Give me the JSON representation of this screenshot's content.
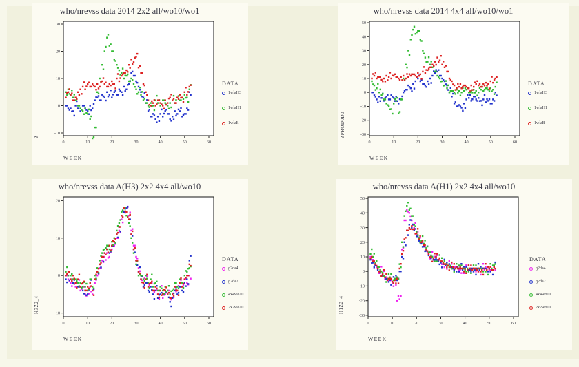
{
  "page": {
    "outer_bg": "#f7f7ea",
    "inner_bg": "#f1f1de",
    "panel_bg": "#fcfbf2",
    "plot_bg": "#ffffff",
    "frame_color": "#2a2a2a",
    "text_color": "#35353f",
    "series_colors": {
      "blue": "#2233cc",
      "green": "#33bb33",
      "red": "#dd2222",
      "magenta": "#ee22ee"
    }
  },
  "chart_data": [
    {
      "type": "scatter",
      "title": "who/nrevss data 2014 2x2 all/wo10/wo1",
      "xlabel": "WEEK",
      "ylabel": "Z",
      "legend_title": "DATA",
      "xlim": [
        0,
        62
      ],
      "ylim": [
        -11,
        31
      ],
      "xticks": [
        0,
        10,
        20,
        30,
        40,
        50,
        60
      ],
      "yticks": [
        -10,
        0,
        10,
        20,
        30
      ],
      "x_weeks_start": 1,
      "grid": false,
      "legend_position": "right",
      "series": [
        {
          "name": "1wlaH3",
          "color": "#2233cc",
          "y": [
            0,
            -1,
            -1,
            -2,
            0,
            -1,
            -2,
            0,
            -1,
            -2,
            0,
            -1,
            2,
            3,
            2,
            4,
            3,
            5,
            4,
            3,
            5,
            4,
            6,
            5,
            7,
            6,
            8,
            12,
            11,
            9,
            7,
            5,
            3,
            1,
            -2,
            -4,
            -3,
            -5,
            -4,
            -3,
            -4,
            -2,
            -3,
            -5,
            -4,
            -2,
            -3,
            -2,
            -4,
            -3,
            -1,
            5
          ]
        },
        {
          "name": "1wlaH1",
          "color": "#33bb33",
          "y": [
            5,
            6,
            4,
            3,
            2,
            0,
            -1,
            -2,
            -1,
            -3,
            -5,
            -12,
            -8,
            5,
            10,
            15,
            20,
            25,
            22,
            20,
            17,
            15,
            13,
            12,
            10,
            11,
            9,
            10,
            8,
            6,
            5,
            4,
            2,
            1,
            0,
            1,
            0,
            2,
            1,
            0,
            2,
            1,
            0,
            1,
            2,
            1,
            3,
            2,
            3,
            4,
            3,
            6
          ]
        },
        {
          "name": "1wlaB",
          "color": "#dd2222",
          "y": [
            3,
            5,
            4,
            2,
            3,
            5,
            6,
            7,
            6,
            8,
            7,
            8,
            7,
            8,
            7,
            9,
            8,
            7,
            8,
            9,
            8,
            10,
            9,
            11,
            12,
            13,
            15,
            17,
            16,
            18,
            14,
            12,
            8,
            5,
            2,
            0,
            1,
            0,
            2,
            1,
            0,
            2,
            1,
            3,
            2,
            1,
            3,
            4,
            3,
            5,
            4,
            7
          ]
        }
      ]
    },
    {
      "type": "scatter",
      "title": "who/nrevss data 2014 4x4 all/wo10/wo1",
      "xlabel": "WEEK",
      "ylabel": "ZPROD0D0",
      "legend_title": "DATA",
      "xlim": [
        0,
        62
      ],
      "ylim": [
        -31,
        51
      ],
      "xticks": [
        0,
        10,
        20,
        30,
        40,
        50,
        60
      ],
      "yticks": [
        -30,
        -20,
        -10,
        0,
        10,
        20,
        30,
        40,
        50
      ],
      "x_weeks_start": 1,
      "grid": false,
      "legend_position": "right",
      "series": [
        {
          "name": "1wlaH3",
          "color": "#2233cc",
          "y": [
            0,
            -2,
            -5,
            -3,
            -4,
            -6,
            -3,
            -5,
            -2,
            -4,
            -3,
            -8,
            -5,
            0,
            2,
            5,
            3,
            6,
            8,
            10,
            8,
            6,
            5,
            8,
            10,
            12,
            14,
            15,
            12,
            10,
            8,
            5,
            0,
            -3,
            -8,
            -10,
            -9,
            -11,
            -8,
            -5,
            -4,
            -6,
            -3,
            -5,
            -4,
            -6,
            -5,
            -7,
            -6,
            -8,
            -5,
            0
          ]
        },
        {
          "name": "1wlaH1",
          "color": "#33bb33",
          "y": [
            8,
            5,
            3,
            0,
            -2,
            -5,
            -8,
            -10,
            -12,
            -8,
            -6,
            -15,
            -5,
            10,
            20,
            30,
            38,
            45,
            42,
            44,
            38,
            30,
            25,
            22,
            20,
            18,
            15,
            12,
            10,
            8,
            5,
            3,
            0,
            1,
            0,
            2,
            1,
            0,
            1,
            2,
            0,
            1,
            2,
            1,
            0,
            2,
            1,
            3,
            2,
            3,
            2,
            4
          ]
        },
        {
          "name": "1wlaB",
          "color": "#dd2222",
          "y": [
            10,
            12,
            10,
            11,
            9,
            10,
            12,
            11,
            10,
            12,
            11,
            10,
            11,
            12,
            10,
            11,
            12,
            13,
            12,
            14,
            13,
            15,
            14,
            16,
            18,
            20,
            22,
            25,
            23,
            20,
            18,
            15,
            10,
            8,
            5,
            3,
            4,
            3,
            5,
            4,
            3,
            5,
            4,
            6,
            5,
            4,
            6,
            7,
            6,
            8,
            7,
            10
          ]
        }
      ]
    },
    {
      "type": "scatter",
      "title": "who/nrevss data A(H3) 2x2 4x4 all/wo10",
      "xlabel": "WEEK",
      "ylabel": "H3Z2_4",
      "legend_title": "DATA",
      "xlim": [
        0,
        62
      ],
      "ylim": [
        -11,
        21
      ],
      "xticks": [
        0,
        10,
        20,
        30,
        40,
        50,
        60
      ],
      "yticks": [
        -10,
        0,
        10,
        20
      ],
      "x_weeks_start": 1,
      "grid": false,
      "legend_position": "right",
      "series": [
        {
          "name": "g2da4",
          "color": "#ee22ee",
          "y": [
            0,
            -1,
            -2,
            -1,
            -3,
            -2,
            -4,
            -3,
            -5,
            -4,
            -3,
            -5,
            -2,
            0,
            2,
            4,
            5,
            6,
            5,
            7,
            8,
            10,
            12,
            15,
            18,
            17,
            16,
            12,
            8,
            5,
            2,
            0,
            -2,
            -1,
            -3,
            -2,
            -4,
            -3,
            -5,
            -4,
            -6,
            -5,
            -4,
            -6,
            -5,
            -3,
            -4,
            -2,
            -3,
            -1,
            -2,
            0
          ]
        },
        {
          "name": "g2da2",
          "color": "#2233cc",
          "y": [
            -1,
            0,
            -1,
            -2,
            -2,
            -3,
            -3,
            -4,
            -4,
            -5,
            -2,
            -4,
            -1,
            1,
            3,
            5,
            6,
            7,
            6,
            8,
            9,
            11,
            13,
            16,
            17,
            18,
            15,
            11,
            7,
            4,
            1,
            -1,
            -3,
            -2,
            -4,
            -3,
            -5,
            -4,
            -6,
            -5,
            -5,
            -4,
            -5,
            -7,
            -6,
            -4,
            -5,
            -3,
            -4,
            -2,
            -1,
            4
          ]
        },
        {
          "name": "4x4wo10",
          "color": "#33bb33",
          "y": [
            1,
            0,
            0,
            -1,
            -1,
            -2,
            -2,
            -3,
            -3,
            -4,
            -1,
            -3,
            0,
            2,
            4,
            6,
            7,
            8,
            7,
            9,
            10,
            12,
            14,
            17,
            18,
            16,
            14,
            10,
            6,
            3,
            0,
            0,
            -1,
            0,
            -2,
            -1,
            -3,
            -2,
            -4,
            -3,
            -4,
            -3,
            -4,
            -5,
            -4,
            -2,
            -3,
            -1,
            -2,
            0,
            1,
            2
          ]
        },
        {
          "name": "2x2wo10",
          "color": "#dd2222",
          "y": [
            0,
            1,
            -1,
            0,
            -2,
            -1,
            -3,
            -2,
            -4,
            -3,
            -2,
            -4,
            -1,
            1,
            3,
            5,
            6,
            7,
            8,
            8,
            9,
            11,
            13,
            16,
            18,
            17,
            15,
            11,
            7,
            4,
            1,
            -1,
            -2,
            -1,
            -3,
            -2,
            -4,
            -3,
            -5,
            -4,
            -5,
            -4,
            -5,
            -6,
            -5,
            -3,
            -4,
            -2,
            -3,
            -1,
            0,
            3
          ]
        }
      ]
    },
    {
      "type": "scatter",
      "title": "who/nrevss data A(H1) 2x2 4x4 all/wo10",
      "xlabel": "WEEK",
      "ylabel": "H1Z2_4",
      "legend_title": "DATA",
      "xlim": [
        0,
        62
      ],
      "ylim": [
        -31,
        51
      ],
      "xticks": [
        0,
        10,
        20,
        30,
        40,
        50,
        60
      ],
      "yticks": [
        -30,
        -20,
        -10,
        0,
        10,
        20,
        30,
        40,
        50
      ],
      "x_weeks_start": 1,
      "grid": false,
      "legend_position": "right",
      "series": [
        {
          "name": "g2da4",
          "color": "#ee22ee",
          "y": [
            10,
            8,
            5,
            2,
            0,
            -2,
            -5,
            -6,
            -5,
            -8,
            -6,
            -20,
            -19,
            15,
            35,
            42,
            40,
            35,
            30,
            25,
            22,
            20,
            18,
            15,
            12,
            10,
            8,
            10,
            8,
            6,
            5,
            5,
            4,
            3,
            2,
            3,
            2,
            1,
            2,
            1,
            2,
            1,
            2,
            1,
            2,
            1,
            2,
            1,
            2,
            1,
            2,
            3
          ]
        },
        {
          "name": "g2da2",
          "color": "#2233cc",
          "y": [
            8,
            6,
            4,
            1,
            -1,
            -3,
            -4,
            -5,
            -6,
            -7,
            -5,
            -6,
            0,
            10,
            20,
            28,
            32,
            30,
            28,
            24,
            21,
            19,
            17,
            14,
            11,
            9,
            8,
            9,
            7,
            6,
            5,
            4,
            4,
            3,
            2,
            2,
            3,
            2,
            1,
            2,
            1,
            1,
            2,
            1,
            2,
            1,
            1,
            2,
            1,
            2,
            1,
            3
          ]
        },
        {
          "name": "4x4wo10",
          "color": "#33bb33",
          "y": [
            12,
            10,
            6,
            3,
            1,
            -1,
            -4,
            -5,
            -4,
            -7,
            -5,
            -4,
            5,
            20,
            38,
            45,
            42,
            38,
            32,
            27,
            23,
            21,
            19,
            16,
            13,
            11,
            9,
            10,
            8,
            7,
            6,
            5,
            4,
            4,
            3,
            2,
            2,
            3,
            2,
            1,
            2,
            2,
            1,
            2,
            1,
            2,
            1,
            2,
            1,
            2,
            2,
            4
          ]
        },
        {
          "name": "2x2wo10",
          "color": "#dd2222",
          "y": [
            9,
            7,
            5,
            2,
            0,
            -2,
            -4,
            -6,
            -5,
            -7,
            -6,
            -5,
            2,
            12,
            22,
            28,
            30,
            31,
            29,
            26,
            22,
            20,
            18,
            15,
            12,
            10,
            9,
            10,
            8,
            7,
            6,
            5,
            4,
            3,
            3,
            2,
            2,
            3,
            2,
            2,
            1,
            2,
            1,
            2,
            1,
            2,
            1,
            2,
            1,
            2,
            1,
            3
          ]
        }
      ]
    }
  ]
}
